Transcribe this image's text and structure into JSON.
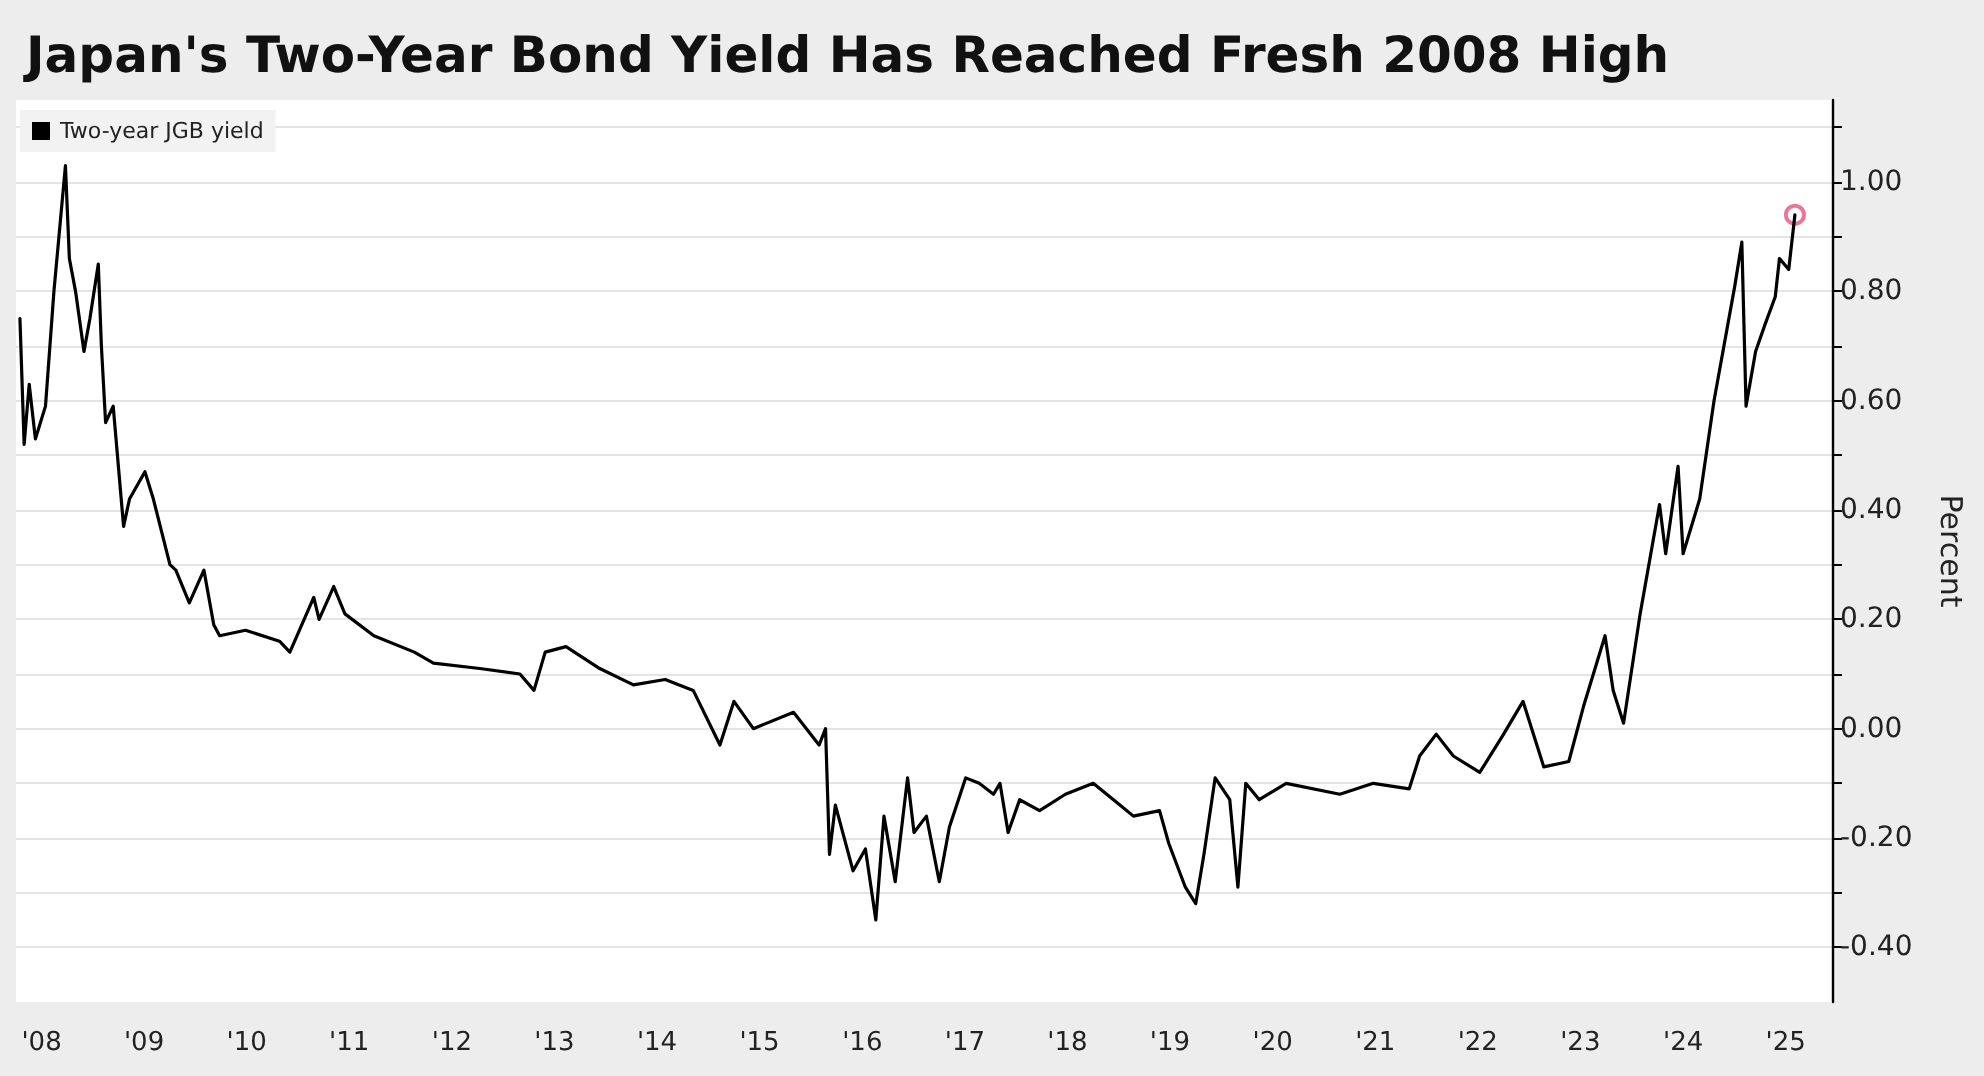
{
  "chart_data": {
    "type": "line",
    "title": "Japan's Two-Year Bond Yield Has Reached Fresh 2008 High",
    "ylabel": "Percent",
    "xlim": [
      "2008-04-01",
      "2025-12-13"
    ],
    "xticks": [
      {
        "value": "2008-07-01",
        "label": "'08"
      },
      {
        "value": "2009-07-01",
        "label": "'09"
      },
      {
        "value": "2010-07-01",
        "label": "'10"
      },
      {
        "value": "2011-07-01",
        "label": "'11"
      },
      {
        "value": "2012-07-01",
        "label": "'12"
      },
      {
        "value": "2013-07-01",
        "label": "'13"
      },
      {
        "value": "2014-07-01",
        "label": "'14"
      },
      {
        "value": "2015-07-01",
        "label": "'15"
      },
      {
        "value": "2016-07-01",
        "label": "'16"
      },
      {
        "value": "2017-07-01",
        "label": "'17"
      },
      {
        "value": "2018-07-01",
        "label": "'18"
      },
      {
        "value": "2019-07-01",
        "label": "'19"
      },
      {
        "value": "2020-07-01",
        "label": "'20"
      },
      {
        "value": "2021-07-01",
        "label": "'21"
      },
      {
        "value": "2022-07-01",
        "label": "'22"
      },
      {
        "value": "2023-07-01",
        "label": "'23"
      },
      {
        "value": "2024-07-01",
        "label": "'24"
      },
      {
        "value": "2025-07-01",
        "label": "'25"
      }
    ],
    "ylim": [
      -0.5,
      1.15
    ],
    "yticks": [
      {
        "value": 1.1,
        "label": null
      },
      {
        "value": 1,
        "label": "1.00"
      },
      {
        "value": 0.9,
        "label": null
      },
      {
        "value": 0.8,
        "label": "0.80"
      },
      {
        "value": 0.7,
        "label": null
      },
      {
        "value": 0.6,
        "label": "0.60"
      },
      {
        "value": 0.5,
        "label": null
      },
      {
        "value": 0.4,
        "label": "0.40"
      },
      {
        "value": 0.3,
        "label": null
      },
      {
        "value": 0.2,
        "label": "0.20"
      },
      {
        "value": 0.1,
        "label": null
      },
      {
        "value": 0,
        "label": "0.00"
      },
      {
        "value": -0.1,
        "label": null
      },
      {
        "value": -0.2,
        "label": "-0.20"
      },
      {
        "value": -0.3,
        "label": null
      },
      {
        "value": -0.4,
        "label": "-0.40"
      }
    ],
    "grid": "y",
    "legend": "top left",
    "marker": "none",
    "line_style": "solid",
    "series": [
      {
        "name": "Two-year JGB yield",
        "color": "#000000",
        "x": [
          "2008-04-15",
          "2008-04-30",
          "2008-05-18",
          "2008-06-09",
          "2008-07-15",
          "2008-08-14",
          "2008-09-24",
          "2008-10-08",
          "2008-10-30",
          "2008-11-29",
          "2008-12-20",
          "2009-01-19",
          "2009-01-30",
          "2009-02-14",
          "2009-03-13",
          "2009-04-19",
          "2009-05-10",
          "2009-07-04",
          "2009-08-03",
          "2009-10-01",
          "2009-10-22",
          "2009-12-09",
          "2010-01-30",
          "2010-03-06",
          "2010-03-27",
          "2010-06-27",
          "2010-10-26",
          "2010-12-02",
          "2011-02-25",
          "2011-03-16",
          "2011-05-07",
          "2011-06-16",
          "2011-09-27",
          "2012-02-18",
          "2012-04-26",
          "2012-10-08",
          "2013-02-28",
          "2013-04-19",
          "2013-05-29",
          "2013-08-11",
          "2013-12-09",
          "2014-04-08",
          "2014-07-30",
          "2014-11-07",
          "2015-02-10",
          "2015-04-01",
          "2015-06-09",
          "2015-10-30",
          "2016-01-29",
          "2016-02-21",
          "2016-03-06",
          "2016-03-27",
          "2016-05-29",
          "2016-07-12",
          "2016-08-18",
          "2016-09-16",
          "2016-10-26",
          "2016-12-09",
          "2017-01-01",
          "2017-02-14",
          "2017-04-01",
          "2017-05-07",
          "2017-07-04",
          "2017-08-21",
          "2017-10-11",
          "2017-11-03",
          "2017-12-02",
          "2018-01-12",
          "2018-03-24",
          "2018-06-24",
          "2018-10-01",
          "2019-01-05",
          "2019-02-21",
          "2019-05-25",
          "2019-06-27",
          "2019-08-25",
          "2019-10-01",
          "2019-10-30",
          "2019-12-09",
          "2020-01-30",
          "2020-02-28",
          "2020-03-27",
          "2020-05-14",
          "2020-08-18",
          "2021-02-25",
          "2021-06-24",
          "2021-10-30",
          "2021-12-06",
          "2022-02-03",
          "2022-04-05",
          "2022-07-08",
          "2022-10-01",
          "2022-12-09",
          "2023-02-21",
          "2023-05-21",
          "2023-07-12",
          "2023-09-27",
          "2023-10-26",
          "2023-12-02",
          "2024-01-30",
          "2024-04-08",
          "2024-04-30",
          "2024-06-13",
          "2024-07-01",
          "2024-08-29",
          "2024-10-19",
          "2025-01-01",
          "2025-01-26",
          "2025-02-10",
          "2025-03-16",
          "2025-04-19",
          "2025-05-25",
          "2025-06-09",
          "2025-07-12",
          "2025-08-03"
        ],
        "values": [
          0.75,
          0.52,
          0.63,
          0.53,
          0.59,
          0.8,
          1.03,
          0.86,
          0.8,
          0.69,
          0.75,
          0.85,
          0.7,
          0.56,
          0.59,
          0.37,
          0.42,
          0.47,
          0.42,
          0.3,
          0.29,
          0.23,
          0.29,
          0.19,
          0.17,
          0.18,
          0.16,
          0.14,
          0.24,
          0.2,
          0.26,
          0.21,
          0.17,
          0.14,
          0.12,
          0.11,
          0.1,
          0.07,
          0.14,
          0.15,
          0.11,
          0.08,
          0.09,
          0.07,
          -0.03,
          0.05,
          0.0,
          0.03,
          -0.03,
          0.0,
          -0.23,
          -0.14,
          -0.26,
          -0.22,
          -0.35,
          -0.16,
          -0.28,
          -0.09,
          -0.19,
          -0.16,
          -0.28,
          -0.18,
          -0.09,
          -0.1,
          -0.12,
          -0.1,
          -0.19,
          -0.13,
          -0.15,
          -0.12,
          -0.1,
          -0.14,
          -0.16,
          -0.15,
          -0.21,
          -0.29,
          -0.32,
          -0.23,
          -0.09,
          -0.13,
          -0.29,
          -0.1,
          -0.13,
          -0.1,
          -0.12,
          -0.1,
          -0.11,
          -0.05,
          -0.01,
          -0.05,
          -0.08,
          -0.01,
          0.05,
          -0.07,
          -0.06,
          0.04,
          0.17,
          0.07,
          0.01,
          0.21,
          0.41,
          0.32,
          0.48,
          0.32,
          0.42,
          0.6,
          0.81,
          0.89,
          0.59,
          0.69,
          0.74,
          0.79,
          0.86,
          0.84,
          0.94
        ]
      },
      {
        "color": "#e8537a",
        "type": "scatter",
        "marker": "circle",
        "x": [
          "2025-08-03"
        ],
        "values": [
          0.94
        ]
      }
    ]
  }
}
